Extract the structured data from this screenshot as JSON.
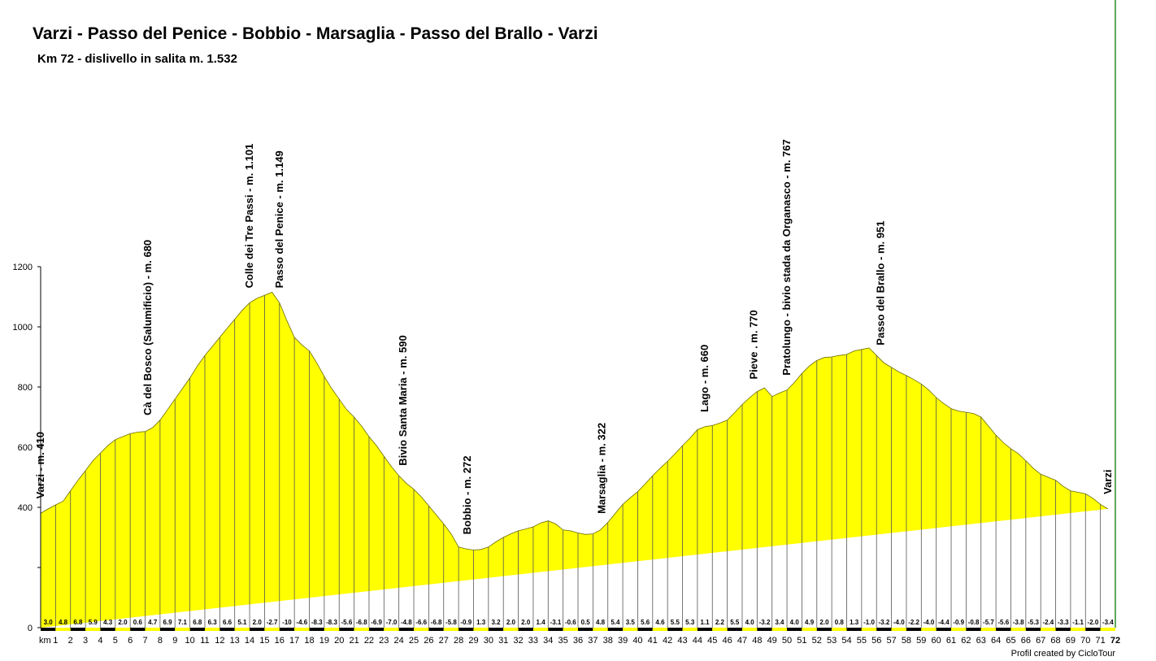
{
  "title": "Varzi - Passo del Penice - Bobbio - Marsaglia - Passo del Brallo - Varzi",
  "subtitle": "Km 72 - dislivello in salita m. 1.532",
  "credit": "Profil created by CicloTour",
  "chart_data": {
    "type": "area",
    "title": "Varzi - Passo del Penice - Bobbio - Marsaglia - Passo del Brallo - Varzi",
    "subtitle": "Km 72 - dislivello in salita m. 1.532",
    "xlabel": "km",
    "ylabel": "",
    "xlim": [
      0,
      72
    ],
    "ylim": [
      0,
      1200
    ],
    "y_ticks": [
      0,
      400,
      600,
      800,
      1000,
      1200
    ],
    "x_ticks": [
      1,
      2,
      3,
      4,
      5,
      6,
      7,
      8,
      9,
      10,
      11,
      12,
      13,
      14,
      15,
      16,
      17,
      18,
      19,
      20,
      21,
      22,
      23,
      24,
      25,
      26,
      27,
      28,
      29,
      30,
      31,
      32,
      33,
      34,
      35,
      36,
      37,
      38,
      39,
      40,
      41,
      42,
      43,
      44,
      45,
      46,
      47,
      48,
      49,
      50,
      51,
      52,
      53,
      54,
      55,
      56,
      57,
      58,
      59,
      60,
      61,
      62,
      63,
      64,
      65,
      66,
      67,
      68,
      69,
      70,
      71,
      72
    ],
    "fill_color": "#ffff00",
    "x": [
      0,
      0.5,
      1,
      1.5,
      2,
      2.5,
      3,
      3.5,
      4,
      4.5,
      5,
      5.5,
      6,
      6.5,
      7,
      7.5,
      8,
      8.5,
      9,
      9.5,
      10,
      10.5,
      11,
      11.5,
      12,
      12.5,
      13,
      13.5,
      14,
      14.5,
      15,
      15.5,
      16,
      16.5,
      17,
      17.5,
      18,
      18.5,
      19,
      19.5,
      20,
      20.5,
      21,
      21.5,
      22,
      22.5,
      23,
      23.5,
      24,
      24.5,
      25,
      25.5,
      26,
      26.5,
      27,
      27.5,
      28,
      28.5,
      29,
      29.5,
      30,
      30.5,
      31,
      31.5,
      32,
      32.5,
      33,
      33.5,
      34,
      34.5,
      35,
      35.5,
      36,
      36.5,
      37,
      37.5,
      38,
      38.5,
      39,
      39.5,
      40,
      40.5,
      41,
      41.5,
      42,
      42.5,
      43,
      43.5,
      44,
      44.5,
      45,
      45.5,
      46,
      46.5,
      47,
      47.5,
      48,
      48.5,
      49,
      49.5,
      50,
      50.5,
      51,
      51.5,
      52,
      52.5,
      53,
      53.5,
      54,
      54.5,
      55,
      55.5,
      56,
      56.5,
      57,
      57.5,
      58,
      58.5,
      59,
      59.5,
      60,
      60.5,
      61,
      61.5,
      62,
      62.5,
      63,
      63.5,
      64,
      64.5,
      65,
      65.5,
      66,
      66.5,
      67,
      67.5,
      68,
      68.5,
      69,
      69.5,
      70,
      70.5,
      71,
      71.5,
      72
    ],
    "elevation": [
      380,
      395,
      408,
      420,
      455,
      490,
      522,
      555,
      580,
      605,
      625,
      635,
      645,
      650,
      652,
      665,
      690,
      725,
      760,
      795,
      830,
      870,
      905,
      935,
      965,
      995,
      1025,
      1055,
      1080,
      1095,
      1105,
      1115,
      1080,
      1020,
      965,
      940,
      920,
      880,
      835,
      795,
      760,
      725,
      700,
      670,
      635,
      605,
      570,
      535,
      505,
      480,
      460,
      435,
      405,
      375,
      345,
      312,
      268,
      262,
      258,
      260,
      268,
      285,
      300,
      312,
      322,
      328,
      335,
      348,
      355,
      345,
      325,
      322,
      315,
      310,
      312,
      325,
      350,
      380,
      410,
      432,
      452,
      478,
      505,
      530,
      553,
      578,
      605,
      630,
      658,
      668,
      672,
      680,
      690,
      715,
      742,
      765,
      785,
      797,
      768,
      780,
      790,
      815,
      845,
      870,
      888,
      898,
      900,
      905,
      908,
      920,
      925,
      930,
      905,
      880,
      865,
      850,
      838,
      825,
      810,
      790,
      765,
      745,
      728,
      720,
      716,
      712,
      700,
      670,
      640,
      615,
      595,
      578,
      555,
      530,
      510,
      500,
      490,
      470,
      455,
      450,
      445,
      430,
      410,
      395
    ]
  },
  "gradients": [
    "3.0",
    "4.8",
    "6.8",
    "5.9",
    "4.3",
    "2.0",
    "0.6",
    "4.7",
    "6.9",
    "7.1",
    "6.8",
    "6.3",
    "6.6",
    "5.1",
    "2.0",
    "-2.7",
    "-10",
    "-4.6",
    "-8.3",
    "-8.3",
    "-5.6",
    "-6.8",
    "-6.9",
    "-7.0",
    "-4.8",
    "-6.6",
    "-6.8",
    "-5.8",
    "-0.9",
    "1.3",
    "3.2",
    "2.0",
    "2.0",
    "1.4",
    "-3.1",
    "-0.6",
    "0.5",
    "4.8",
    "5.4",
    "3.5",
    "5.6",
    "4.6",
    "5.5",
    "5.3",
    "1.1",
    "2.2",
    "5.5",
    "4.0",
    "-3.2",
    "3.4",
    "4.0",
    "4.9",
    "2.0",
    "0.8",
    "1.3",
    "-1.0",
    "-3.2",
    "-4.0",
    "-2.2",
    "-4.0",
    "-4.4",
    "-0.9",
    "-0.8",
    "-5.7",
    "-5.6",
    "-3.8",
    "-5.3",
    "-2.4",
    "-3.3",
    "-1.1",
    "-2.0",
    "-3.4"
  ],
  "points_of_interest": [
    {
      "km": 0,
      "elevation": 410,
      "label": "Varzi - m. 410"
    },
    {
      "km": 7.2,
      "elevation": 680,
      "label": "Cà del Bosco (Salumificio) - m. 680"
    },
    {
      "km": 14,
      "elevation": 1101,
      "label": "Colle dei Tre Passi - m. 1.101"
    },
    {
      "km": 16,
      "elevation": 1149,
      "label": "Passo del Penice - m. 1.149"
    },
    {
      "km": 24.3,
      "elevation": 590,
      "label": "Bivio Santa Maria - m. 590"
    },
    {
      "km": 28.6,
      "elevation": 272,
      "label": "Bobbio - m. 272"
    },
    {
      "km": 37.6,
      "elevation": 322,
      "label": "Marsaglia - m. 322"
    },
    {
      "km": 44.5,
      "elevation": 660,
      "label": "Lago - m. 660"
    },
    {
      "km": 47.8,
      "elevation": 770,
      "label": "Pieve . m. 770"
    },
    {
      "km": 50,
      "elevation": 767,
      "label": "Pratolungo - bivio stada da Organasco - m. 767"
    },
    {
      "km": 56.3,
      "elevation": 951,
      "label": "Passo del Brallo - m. 951"
    },
    {
      "km": 71.5,
      "elevation": 410,
      "label": "Varzi"
    }
  ]
}
